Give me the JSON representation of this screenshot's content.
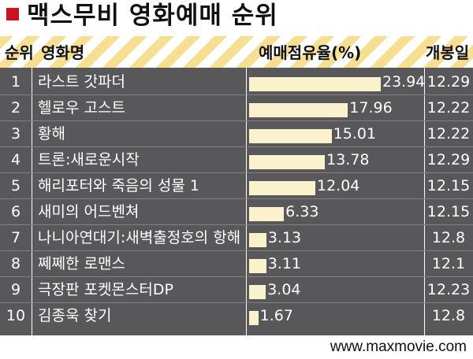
{
  "title": "맥스무비 영화예매 순위",
  "headers": {
    "rank": "순위",
    "movie": "영화명",
    "share": "예매점유율(%)",
    "release": "개봉일"
  },
  "website": "www.maxmovie.com",
  "colors": {
    "accent": "#c8141e",
    "panel": "#58585a",
    "bar": "#f9f2cc",
    "stripe": "#f7df92"
  },
  "chart_data": {
    "type": "bar",
    "title": "맥스무비 영화예매 순위",
    "xlabel": "",
    "ylabel": "예매점유율(%)",
    "categories": [
      "라스트 갓파더",
      "헬로우 고스트",
      "황해",
      "트론:새로운시작",
      "해리포터와 죽음의 성물 1",
      "새미의 어드벤쳐",
      "나니아연대기:새벽출정호의 항해",
      "쩨쩨한 로맨스",
      "극장판 포켓몬스터DP",
      "김종욱 찾기"
    ],
    "ranks": [
      "1",
      "2",
      "3",
      "4",
      "5",
      "6",
      "7",
      "8",
      "9",
      "10"
    ],
    "values": [
      23.94,
      17.96,
      15.01,
      13.78,
      12.04,
      6.33,
      3.13,
      3.11,
      3.04,
      1.67
    ],
    "value_labels": [
      "23.94",
      "17.96",
      "15.01",
      "13.78",
      "12.04",
      "6.33",
      "3.13",
      "3.11",
      "3.04",
      "1.67"
    ],
    "release_dates": [
      "12.29",
      "12.22",
      "12.22",
      "12.29",
      "12.15",
      "12.15",
      "12.8",
      "12.1",
      "12.23",
      "12.8"
    ],
    "ylim": [
      0,
      25
    ]
  }
}
